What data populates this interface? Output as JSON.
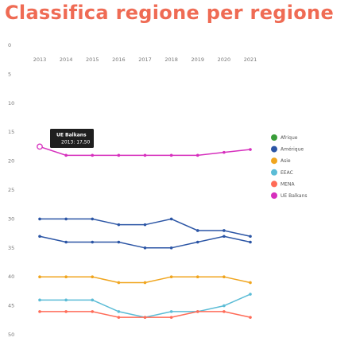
{
  "title": "Classifica regione per regione",
  "chart_data": {
    "type": "line",
    "title": "Classifica regione per regione",
    "x": [
      2013,
      2014,
      2015,
      2016,
      2017,
      2018,
      2019,
      2020,
      2021
    ],
    "x_ticks": [
      "2013",
      "2014",
      "2015",
      "2016",
      "2017",
      "2018",
      "2019",
      "2020",
      "2021"
    ],
    "y_ticks": [
      "0",
      "5",
      "10",
      "15",
      "20",
      "25",
      "30",
      "35",
      "40",
      "45",
      "50"
    ],
    "ylim": [
      0,
      50
    ],
    "y_inverted": true,
    "grid": false,
    "legend_position": "right",
    "series": [
      {
        "name": "Afrique",
        "color": "#3a9d3a",
        "values": [
          null,
          null,
          null,
          null,
          null,
          null,
          null,
          null,
          null
        ]
      },
      {
        "name": "Amérique",
        "color": "#2b55a5",
        "values": [
          30,
          30,
          30,
          31,
          31,
          30,
          32,
          32,
          33
        ]
      },
      {
        "name": "Asie",
        "color": "#f0a51e",
        "values": [
          40,
          40,
          40,
          41,
          41,
          40,
          40,
          40,
          41
        ]
      },
      {
        "name": "EEAC",
        "color": "#5bbcd6",
        "values": [
          44,
          44,
          44,
          46,
          47,
          46,
          46,
          45,
          43
        ]
      },
      {
        "name": "MENA",
        "color": "#ff6b57",
        "values": [
          46,
          46,
          46,
          47,
          47,
          47,
          46,
          46,
          47
        ]
      },
      {
        "name": "UE Balkans",
        "color": "#d62fbd",
        "values": [
          17.5,
          19,
          19,
          19,
          19,
          19,
          19,
          18.5,
          18
        ]
      },
      {
        "name": "",
        "color": "#2b55a5",
        "values": [
          33,
          34,
          34,
          34,
          35,
          35,
          34,
          33,
          34
        ]
      }
    ],
    "tooltip": {
      "title": "UE Balkans",
      "text": "2013: 17,50",
      "year": 2013
    }
  }
}
